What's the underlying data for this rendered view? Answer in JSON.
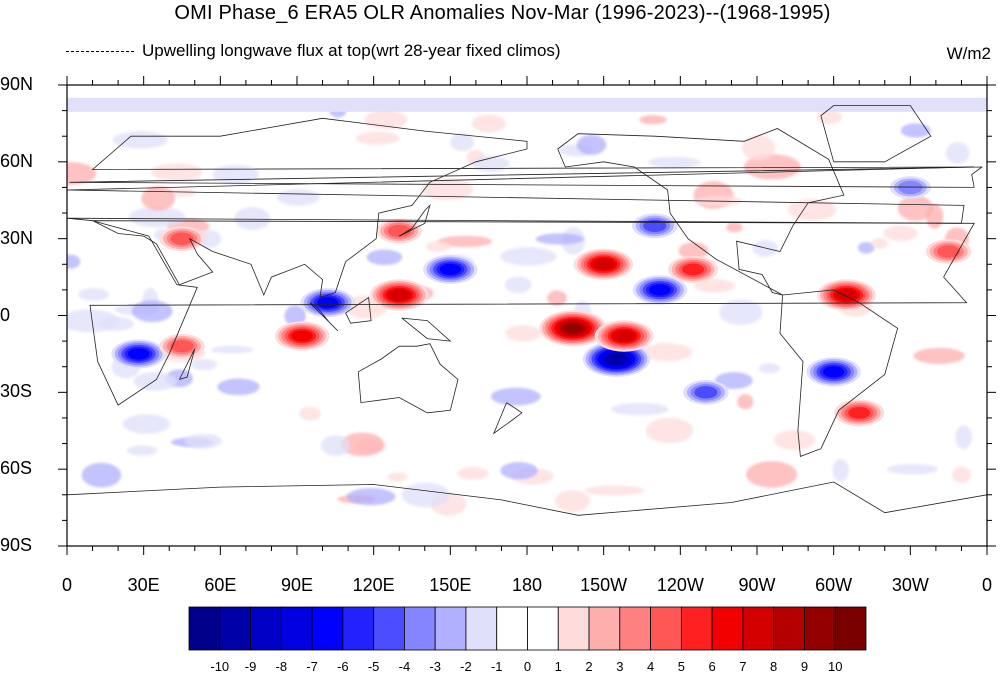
{
  "title": "OMI Phase_6 ERA5 OLR Anomalies Nov-Mar (1996-2023)--(1968-1995)",
  "subtitle_left": "Upwelling longwave flux at top(wrt 28-year fixed climos)",
  "units": "W/m2",
  "map": {
    "projection": "cylindrical equidistant",
    "center_lon": 180,
    "lon_range": [
      0,
      360
    ],
    "lat_range": [
      -90,
      90
    ]
  },
  "axes": {
    "lat_ticks": [
      "90N",
      "60N",
      "30N",
      "0",
      "30S",
      "60S",
      "90S"
    ],
    "lat_values": [
      90,
      60,
      30,
      0,
      -30,
      -60,
      -90
    ],
    "lon_ticks": [
      "0",
      "30E",
      "60E",
      "90E",
      "120E",
      "150E",
      "180",
      "150W",
      "120W",
      "90W",
      "60W",
      "30W",
      "0"
    ],
    "lon_values": [
      0,
      30,
      60,
      90,
      120,
      150,
      180,
      210,
      240,
      270,
      300,
      330,
      360
    ]
  },
  "colorbar": {
    "labels": [
      "-10",
      "-9",
      "-8",
      "-7",
      "-6",
      "-5",
      "-4",
      "-3",
      "-2",
      "-1",
      "0",
      "1",
      "2",
      "3",
      "4",
      "5",
      "6",
      "7",
      "8",
      "9",
      "10"
    ],
    "colors": [
      "#00008b",
      "#0000a8",
      "#0000c6",
      "#0000e0",
      "#0000ff",
      "#2222ff",
      "#4c4cff",
      "#8585ff",
      "#b0b0ff",
      "#e0e0fa",
      "#ffffff",
      "#ffffff",
      "#ffdcdc",
      "#ffaeae",
      "#ff8080",
      "#ff5656",
      "#ff2020",
      "#f20000",
      "#d40000",
      "#b50000",
      "#940000",
      "#7a0000"
    ]
  },
  "chart_data": {
    "type": "heatmap",
    "variable": "OLR anomaly",
    "units": "W/m2",
    "anomaly_features": [
      {
        "lon": 215,
        "lat": -17,
        "value": -9
      },
      {
        "lon": 198,
        "lat": -5,
        "value": 9
      },
      {
        "lon": 218,
        "lat": -8,
        "value": 7
      },
      {
        "lon": 210,
        "lat": 20,
        "value": 7
      },
      {
        "lon": 130,
        "lat": 8,
        "value": 7
      },
      {
        "lon": 92,
        "lat": -8,
        "value": 6
      },
      {
        "lon": 305,
        "lat": 8,
        "value": 7
      },
      {
        "lon": 28,
        "lat": -15,
        "value": -6
      },
      {
        "lon": 102,
        "lat": 5,
        "value": -6
      },
      {
        "lon": 150,
        "lat": 18,
        "value": -6
      },
      {
        "lon": 232,
        "lat": 10,
        "value": -6
      },
      {
        "lon": 300,
        "lat": -22,
        "value": -6
      },
      {
        "lon": 45,
        "lat": -12,
        "value": 4
      },
      {
        "lon": 130,
        "lat": 33,
        "value": 4
      },
      {
        "lon": 245,
        "lat": 18,
        "value": 5
      },
      {
        "lon": 310,
        "lat": -38,
        "value": 5
      },
      {
        "lon": 45,
        "lat": 30,
        "value": 4
      },
      {
        "lon": 345,
        "lat": 25,
        "value": 4
      },
      {
        "lon": 250,
        "lat": -30,
        "value": -4
      },
      {
        "lon": 230,
        "lat": 35,
        "value": -4
      },
      {
        "lon": 330,
        "lat": 50,
        "value": -3
      }
    ]
  }
}
